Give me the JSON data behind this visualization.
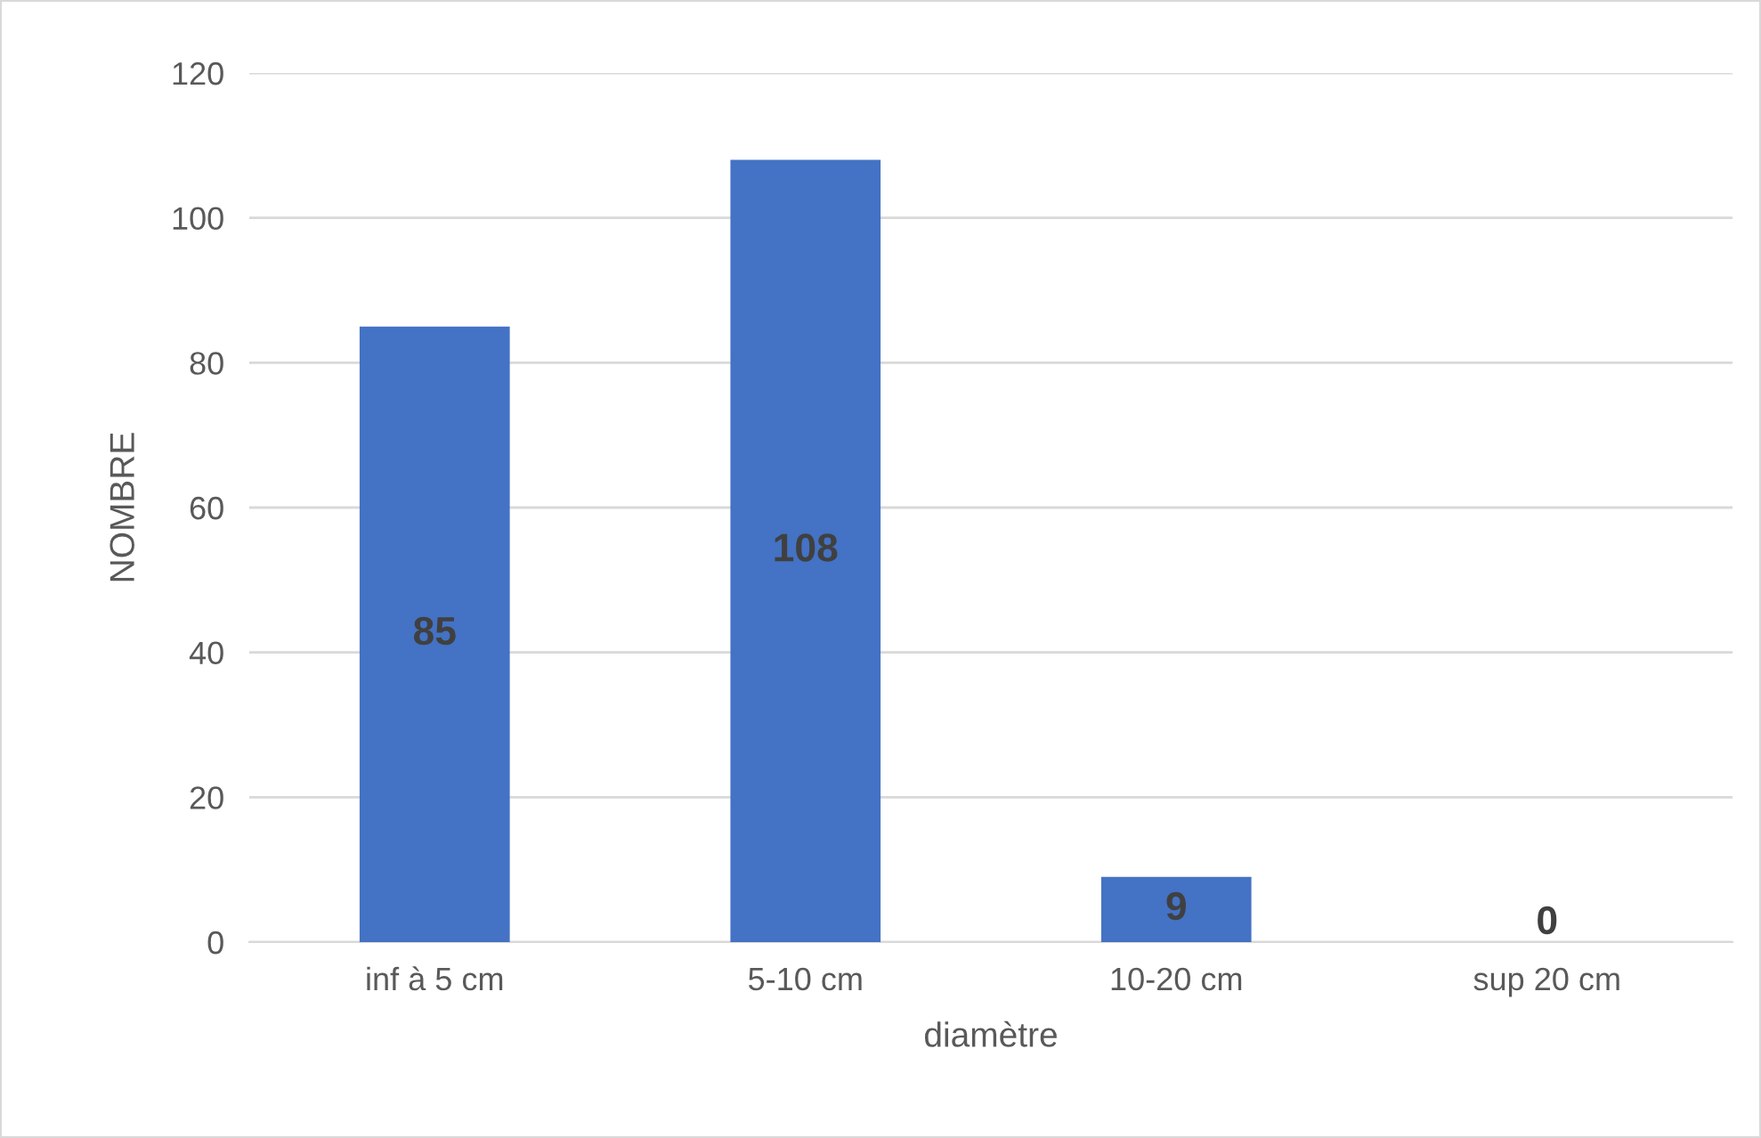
{
  "chart_data": {
    "type": "bar",
    "xlabel": "diamètre",
    "ylabel": "NOMBRE",
    "categories": [
      "inf à 5 cm",
      "5-10 cm",
      "10-20 cm",
      "sup 20 cm"
    ],
    "values": [
      85,
      108,
      9,
      0
    ],
    "color": "#4472c4",
    "ylim": [
      0,
      120
    ],
    "yticks": [
      0,
      20,
      40,
      60,
      80,
      100,
      120
    ],
    "grid": "y",
    "data_labels": true
  }
}
